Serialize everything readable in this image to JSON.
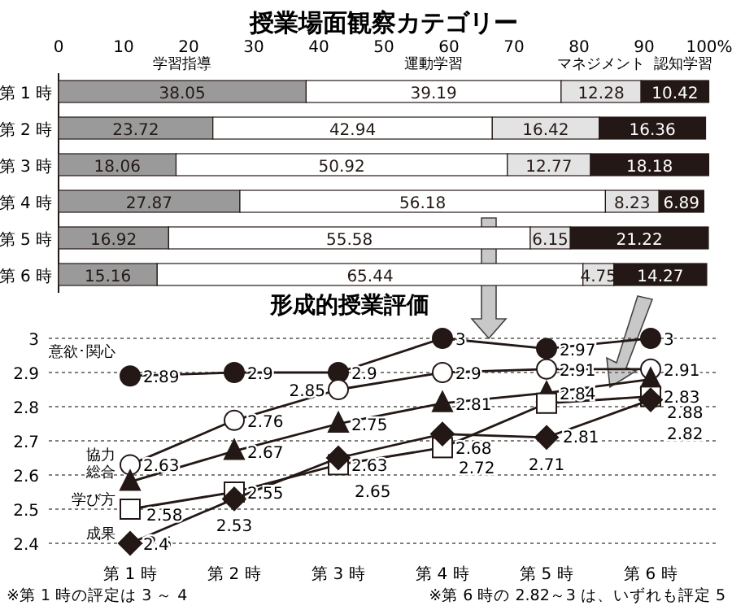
{
  "chart_data": [
    {
      "type": "bar",
      "orientation": "horizontal",
      "stacked": true,
      "title": "授業場面観察カテゴリー",
      "categories": [
        "第 1 時",
        "第 2 時",
        "第 3 時",
        "第 4 時",
        "第 5 時",
        "第 6 時"
      ],
      "xlim": [
        0,
        100
      ],
      "xticks": [
        0,
        10,
        20,
        30,
        40,
        50,
        60,
        70,
        80,
        90,
        {
          "value": 100,
          "label": "100%"
        }
      ],
      "data_labels": true,
      "legend": "top",
      "series": [
        {
          "name": "学習指導",
          "color": "#9a9a9a",
          "values": [
            38.05,
            23.72,
            18.06,
            27.87,
            16.92,
            15.16
          ]
        },
        {
          "name": "運動学習",
          "color": "#ffffff",
          "values": [
            39.19,
            42.94,
            50.92,
            56.18,
            55.58,
            65.44
          ]
        },
        {
          "name": "マネジメント",
          "color": "#e3e3e3",
          "values": [
            12.28,
            16.42,
            12.77,
            8.23,
            6.15,
            4.75
          ]
        },
        {
          "name": "認知学習",
          "color": "#231815",
          "values": [
            10.42,
            16.36,
            18.18,
            6.89,
            21.22,
            14.27
          ]
        }
      ]
    },
    {
      "type": "line",
      "title": "形成的授業評価",
      "categories": [
        "第 1 時",
        "第 2 時",
        "第 3 時",
        "第 4 時",
        "第 5 時",
        "第 6 時"
      ],
      "ylim": [
        2.4,
        3
      ],
      "yticks": [
        2.4,
        2.5,
        2.6,
        2.7,
        2.8,
        2.9,
        3
      ],
      "grid": "y",
      "data_labels": true,
      "legend": "left",
      "annotations": [
        "※第 1 時の評定は 3 ～ 4",
        "※第 6 時の 2.82～3 は、いずれも評定 5"
      ],
      "series": [
        {
          "name": "意欲･関心",
          "color": "#231815",
          "marker": "circle",
          "values": [
            2.89,
            2.9,
            2.9,
            3,
            2.97,
            3
          ]
        },
        {
          "name": "協力",
          "color": "#ffffff",
          "marker": "circle",
          "values": [
            2.63,
            2.76,
            2.85,
            2.9,
            2.91,
            2.91
          ]
        },
        {
          "name": "総合",
          "color": "#231815",
          "marker": "triangle",
          "values": [
            2.58,
            2.67,
            2.75,
            2.81,
            2.84,
            2.88
          ]
        },
        {
          "name": "学び方",
          "color": "#ffffff",
          "marker": "square",
          "values": [
            2.5,
            2.55,
            2.63,
            2.68,
            2.81,
            2.83
          ]
        },
        {
          "name": "成果",
          "color": "#231815",
          "marker": "diamond",
          "values": [
            2.4,
            2.53,
            2.65,
            2.72,
            2.71,
            2.82
          ]
        }
      ]
    }
  ]
}
